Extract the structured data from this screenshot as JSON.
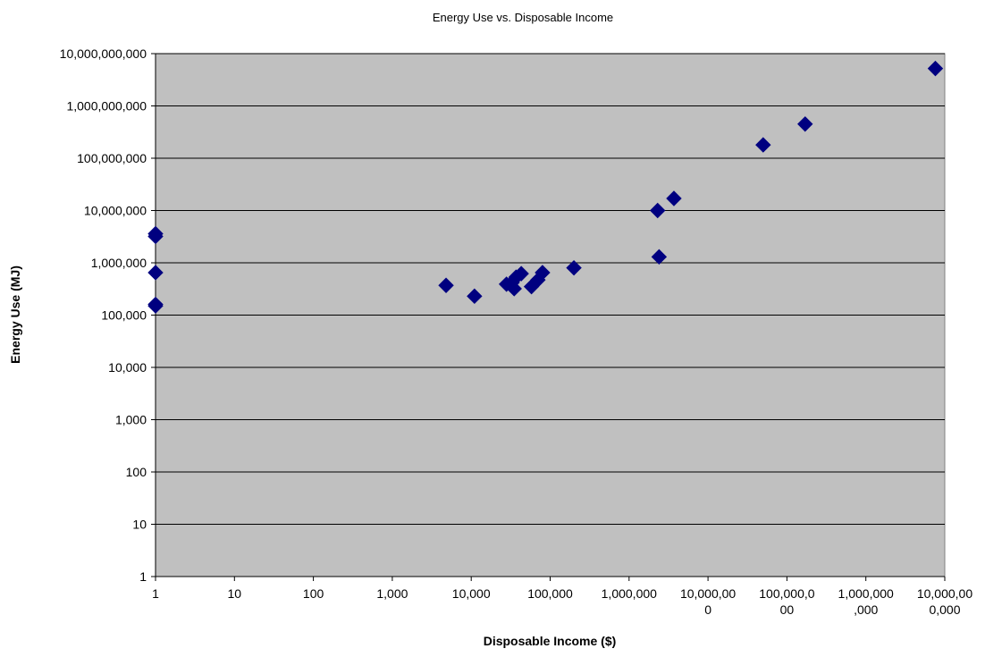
{
  "chart_data": {
    "type": "scatter",
    "title": "Energy Use vs. Disposable Income",
    "xlabel": "Disposable Income ($)",
    "ylabel": "Energy Use (MJ)",
    "xscale": "log",
    "yscale": "log",
    "xlim": [
      1,
      10000000000
    ],
    "ylim": [
      1,
      10000000000
    ],
    "grid": "horizontal major lines",
    "legend": "none",
    "colors": {
      "plot_background": "#c0c0c0",
      "marker": "#000080",
      "grid": "#000000"
    },
    "x_tick_labels": [
      [
        "1"
      ],
      [
        "10"
      ],
      [
        "100"
      ],
      [
        "1,000"
      ],
      [
        "10,000"
      ],
      [
        "100,000"
      ],
      [
        "1,000,000"
      ],
      [
        "10,000,00",
        "0"
      ],
      [
        "100,000,0",
        "00"
      ],
      [
        "1,000,000",
        ",000"
      ],
      [
        "10,000,00",
        "0,000"
      ]
    ],
    "y_tick_labels": [
      "1",
      "10",
      "100",
      "1,000",
      "10,000",
      "100,000",
      "1,000,000",
      "10,000,000",
      "100,000,000",
      "1,000,000,000",
      "10,000,000,000"
    ],
    "series": [
      {
        "marker": "diamond",
        "points": [
          [
            1,
            3200000
          ],
          [
            1,
            3600000
          ],
          [
            1,
            650000
          ],
          [
            1,
            160000
          ],
          [
            1,
            150000
          ],
          [
            4800,
            370000
          ],
          [
            11000,
            230000
          ],
          [
            28000,
            390000
          ],
          [
            33000,
            420000
          ],
          [
            35000,
            320000
          ],
          [
            37000,
            530000
          ],
          [
            43000,
            620000
          ],
          [
            58000,
            350000
          ],
          [
            70000,
            470000
          ],
          [
            80000,
            650000
          ],
          [
            200000,
            800000
          ],
          [
            2300000,
            10000000
          ],
          [
            2400000,
            1300000
          ],
          [
            3700000,
            17000000
          ],
          [
            50000000,
            180000000
          ],
          [
            170000000,
            450000000
          ],
          [
            7600000000,
            5200000000
          ]
        ]
      }
    ]
  }
}
